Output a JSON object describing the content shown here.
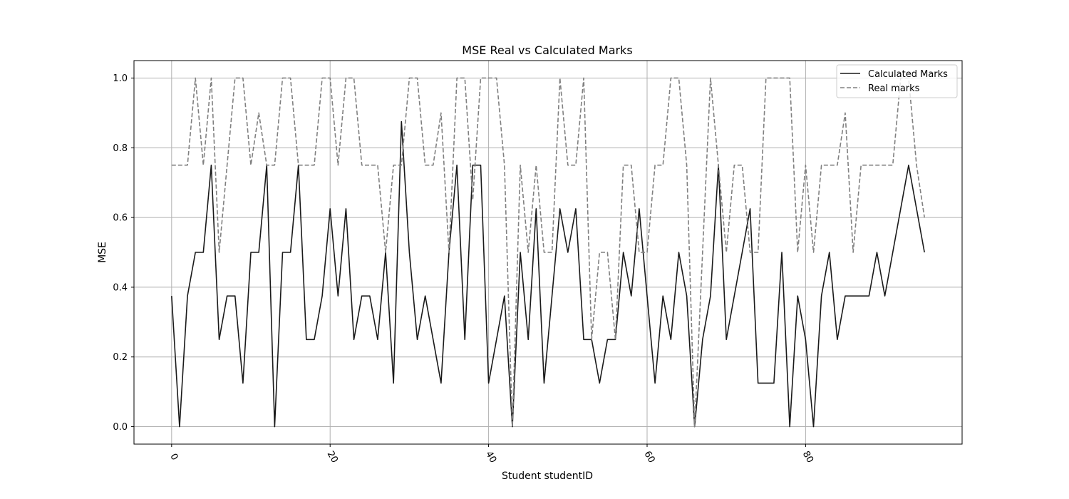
{
  "chart_data": {
    "type": "line",
    "title": "MSE Real vs Calculated Marks",
    "xlabel": "Student studentID",
    "ylabel": "MSE",
    "x_ticks": [
      0,
      20,
      40,
      60,
      80
    ],
    "y_ticks": [
      0.0,
      0.2,
      0.4,
      0.6,
      0.8,
      1.0
    ],
    "xlim": [
      -4.75,
      99.75
    ],
    "ylim": [
      -0.05,
      1.05
    ],
    "grid": true,
    "legend_position": "top-right",
    "x_tick_rotation": "-60deg",
    "x": [
      0,
      1,
      2,
      3,
      4,
      5,
      6,
      7,
      8,
      9,
      10,
      11,
      12,
      13,
      14,
      15,
      16,
      17,
      18,
      19,
      20,
      21,
      22,
      23,
      24,
      25,
      26,
      27,
      28,
      29,
      30,
      31,
      32,
      33,
      34,
      35,
      36,
      37,
      38,
      39,
      40,
      41,
      42,
      43,
      44,
      45,
      46,
      47,
      48,
      49,
      50,
      51,
      52,
      53,
      54,
      55,
      56,
      57,
      58,
      59,
      60,
      61,
      62,
      63,
      64,
      65,
      66,
      67,
      68,
      69,
      70,
      71,
      72,
      73,
      74,
      75,
      76,
      77,
      78,
      79,
      80,
      81,
      82,
      83,
      84,
      85,
      86,
      87,
      88,
      89,
      90,
      91,
      92,
      93,
      94,
      95
    ],
    "series": [
      {
        "name": "Calculated Marks",
        "color": "#1a1a1a",
        "dash": "solid",
        "values": [
          0.375,
          0.0,
          0.375,
          0.5,
          0.5,
          0.75,
          0.25,
          0.375,
          0.375,
          0.125,
          0.5,
          0.5,
          0.75,
          0.0,
          0.5,
          0.5,
          0.75,
          0.25,
          0.25,
          0.375,
          0.625,
          0.375,
          0.625,
          0.25,
          0.375,
          0.375,
          0.25,
          0.5,
          0.125,
          0.875,
          0.5,
          0.25,
          0.375,
          0.25,
          0.125,
          0.5,
          0.75,
          0.25,
          0.75,
          0.75,
          0.125,
          0.25,
          0.375,
          0.0,
          0.5,
          0.25,
          0.625,
          0.125,
          0.375,
          0.625,
          0.5,
          0.625,
          0.25,
          0.25,
          0.125,
          0.25,
          0.25,
          0.5,
          0.375,
          0.625,
          0.375,
          0.125,
          0.375,
          0.25,
          0.5,
          0.375,
          0.0,
          0.25,
          0.375,
          0.75,
          0.25,
          0.375,
          0.5,
          0.625,
          0.125,
          0.125,
          0.125,
          0.5,
          0.0,
          0.375,
          0.25,
          0.0,
          0.375,
          0.5,
          0.25,
          0.375,
          0.375,
          0.375,
          0.375,
          0.5,
          0.375,
          0.5,
          0.625,
          0.75,
          0.625,
          0.5
        ]
      },
      {
        "name": "Real marks",
        "color": "#808080",
        "dash": "dashed",
        "values": [
          0.75,
          0.75,
          0.75,
          1.0,
          0.75,
          1.0,
          0.5,
          0.75,
          1.0,
          1.0,
          0.75,
          0.9,
          0.75,
          0.75,
          1.0,
          1.0,
          0.75,
          0.75,
          0.75,
          1.0,
          1.0,
          0.75,
          1.0,
          1.0,
          0.75,
          0.75,
          0.75,
          0.5,
          0.75,
          0.75,
          1.0,
          1.0,
          0.75,
          0.75,
          0.9,
          0.5,
          1.0,
          1.0,
          0.65,
          1.0,
          1.0,
          1.0,
          0.75,
          0.0,
          0.75,
          0.5,
          0.75,
          0.5,
          0.5,
          1.0,
          0.75,
          0.75,
          1.0,
          0.25,
          0.5,
          0.5,
          0.25,
          0.75,
          0.75,
          0.5,
          0.5,
          0.75,
          0.75,
          1.0,
          1.0,
          0.75,
          0.0,
          0.5,
          1.0,
          0.75,
          0.5,
          0.75,
          0.75,
          0.5,
          0.5,
          1.0,
          1.0,
          1.0,
          1.0,
          0.5,
          0.75,
          0.5,
          0.75,
          0.75,
          0.75,
          0.9,
          0.5,
          0.75,
          0.75,
          0.75,
          0.75,
          0.75,
          1.0,
          1.0,
          0.75,
          0.6
        ]
      }
    ]
  }
}
